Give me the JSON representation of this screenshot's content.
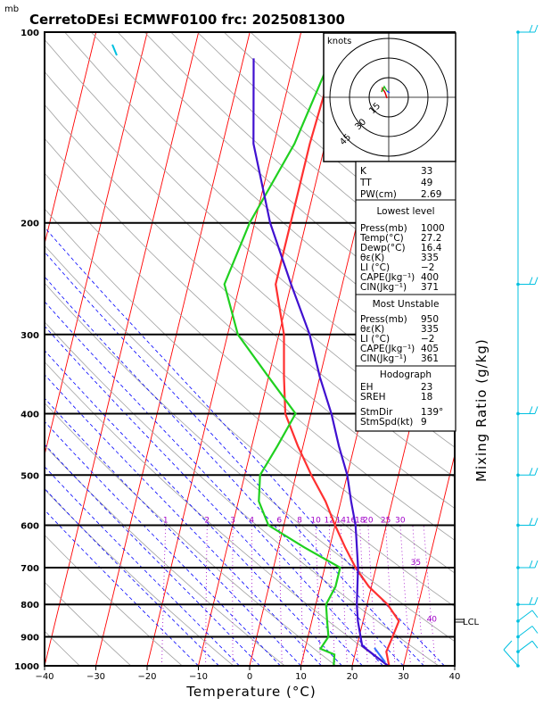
{
  "title": "CerretoDEsi ECMWF0100  frc: 2025081300",
  "units_mb": "mb",
  "x_axis": {
    "label": "Temperature (°C)",
    "ticks": [
      -40,
      -30,
      -20,
      -10,
      0,
      10,
      20,
      30,
      40
    ]
  },
  "y_axis": {
    "scale": "log-pressure",
    "ticks": [
      100,
      200,
      300,
      400,
      500,
      600,
      700,
      800,
      900,
      1000
    ]
  },
  "right_axis_label": "Mixing Ratio (g/kg)",
  "mixing_ratio_labels": [
    "1",
    "2",
    "3",
    "4",
    "6",
    "8",
    "10",
    "12",
    "14",
    "16",
    "18",
    "20",
    "25",
    "30",
    "35",
    "40"
  ],
  "lcl_label": "LCL",
  "hodograph": {
    "units": "knots",
    "rings": [
      "15",
      "30",
      "45"
    ]
  },
  "indices_block": [
    {
      "label": "K",
      "value": "33"
    },
    {
      "label": "TT",
      "value": "49"
    },
    {
      "label": "PW(cm)",
      "value": "2.69"
    }
  ],
  "lowest_level": {
    "header": "Lowest level",
    "rows": [
      {
        "label": "Press(mb)",
        "value": "1000"
      },
      {
        "label": "Temp(°C)",
        "value": "27.2"
      },
      {
        "label": "Dewp(°C)",
        "value": "16.4"
      },
      {
        "label": "θε(K)",
        "value": "335"
      },
      {
        "label": "LI (°C)",
        "value": "−2"
      },
      {
        "label": "CAPE(Jkg⁻¹)",
        "value": "400"
      },
      {
        "label": "CIN(Jkg⁻¹)",
        "value": "371"
      }
    ]
  },
  "most_unstable": {
    "header": "Most Unstable",
    "rows": [
      {
        "label": "Press(mb)",
        "value": "950"
      },
      {
        "label": "θε(K)",
        "value": "335"
      },
      {
        "label": "LI (°C)",
        "value": "−2"
      },
      {
        "label": "CAPE(Jkg⁻¹)",
        "value": "405"
      },
      {
        "label": "CIN(Jkg⁻¹)",
        "value": "361"
      }
    ]
  },
  "hodograph_block": {
    "header": "Hodograph",
    "rows": [
      {
        "label": "EH",
        "value": "23"
      },
      {
        "label": "SREH",
        "value": "18"
      },
      {
        "label": "StmDir",
        "value": "139°"
      },
      {
        "label": "StmSpd(kt)",
        "value": "9"
      }
    ]
  },
  "colors": {
    "temperature": "#ff3030",
    "dewpoint": "#20d020",
    "parcel": "#4010d0",
    "isotherm": "#ff0000",
    "dry_adiabat": "#a0a0a0",
    "moist_adiabat": "#0000ff",
    "mixing_ratio": "#a000c8",
    "wind": "#00c0e0"
  },
  "chart_data": {
    "type": "line",
    "title": "CerretoDEsi ECMWF0100  frc: 2025081300",
    "xlabel": "Temperature (°C)",
    "ylabel": "mb",
    "xlim": [
      -40,
      40
    ],
    "ylim": [
      1000,
      100
    ],
    "series": [
      {
        "name": "temperature",
        "points": [
          [
            27.2,
            1000
          ],
          [
            26,
            950
          ],
          [
            26.5,
            900
          ],
          [
            27,
            850
          ],
          [
            24,
            800
          ],
          [
            19.5,
            750
          ],
          [
            16,
            700
          ],
          [
            13,
            650
          ],
          [
            10,
            600
          ],
          [
            7,
            550
          ],
          [
            3,
            500
          ],
          [
            -1,
            450
          ],
          [
            -5,
            400
          ],
          [
            -7,
            350
          ],
          [
            -9,
            300
          ],
          [
            -13,
            250
          ],
          [
            -13,
            200
          ],
          [
            -13,
            150
          ],
          [
            -12,
            100
          ]
        ]
      },
      {
        "name": "dewpoint",
        "points": [
          [
            16.4,
            1000
          ],
          [
            16,
            960
          ],
          [
            13,
            940
          ],
          [
            14,
            900
          ],
          [
            13,
            850
          ],
          [
            12,
            800
          ],
          [
            13,
            750
          ],
          [
            13,
            700
          ],
          [
            5,
            650
          ],
          [
            -3,
            600
          ],
          [
            -6,
            550
          ],
          [
            -7,
            500
          ],
          [
            -5,
            450
          ],
          [
            -3,
            400
          ],
          [
            -10,
            350
          ],
          [
            -18,
            300
          ],
          [
            -23,
            250
          ],
          [
            -21,
            200
          ],
          [
            -16,
            150
          ],
          [
            -12,
            100
          ]
        ]
      },
      {
        "name": "parcel",
        "points": [
          [
            27,
            1000
          ],
          [
            21,
            930
          ],
          [
            19,
            850
          ],
          [
            18,
            800
          ],
          [
            16.5,
            700
          ],
          [
            14,
            600
          ],
          [
            12,
            550
          ],
          [
            10,
            500
          ],
          [
            7,
            450
          ],
          [
            4,
            400
          ],
          [
            0,
            350
          ],
          [
            -4,
            300
          ],
          [
            -10,
            250
          ],
          [
            -17,
            200
          ],
          [
            -24,
            150
          ],
          [
            -28,
            110
          ]
        ]
      }
    ],
    "wind_barbs": [
      {
        "p": 1000,
        "level": "surface"
      },
      {
        "p": 950
      },
      {
        "p": 900
      },
      {
        "p": 850
      },
      {
        "p": 800
      },
      {
        "p": 700
      },
      {
        "p": 600
      },
      {
        "p": 500
      },
      {
        "p": 400
      },
      {
        "p": 250
      },
      {
        "p": 100
      }
    ],
    "lcl_pressure": 875
  }
}
